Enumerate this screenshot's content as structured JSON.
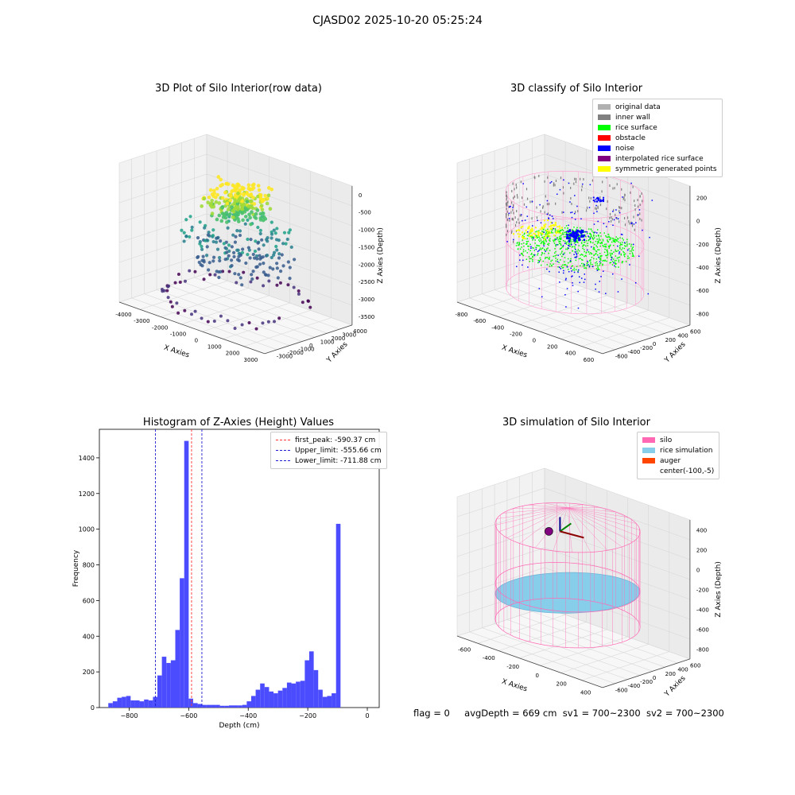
{
  "suptitle": "CJASD02 2025-10-20 05:25:24",
  "footer": {
    "flag": "flag = 0",
    "avg": "avgDepth = 669 cm",
    "sv1": "sv1 = 700~2300",
    "sv2": "sv2 = 700~2300"
  },
  "colors": {
    "histogram_bar": "#4c4cff",
    "first_peak_line": "#ff3333",
    "limit_lines": "#1f1fd0",
    "silo_wire": "#ff69b4",
    "rice_simulation": "#87ceeb",
    "auger": "#ff4500"
  },
  "chart_data": [
    {
      "type": "scatter",
      "subtype": "3d",
      "title": "3D Plot of Silo Interior(row data)",
      "xlabel": "X Axies",
      "ylabel": "Y Axies",
      "zlabel": "Z Axies (Depth)",
      "xticks": [
        "-4000",
        "-3000",
        "-2000",
        "-1000",
        "0",
        "1000",
        "2000",
        "3000"
      ],
      "yticks": [
        "-3000",
        "-2000",
        "-1000",
        "0",
        "1000",
        "2000",
        "3000",
        "4000"
      ],
      "zticks": [
        "0",
        "-500",
        "-1000",
        "-1500",
        "-2000",
        "-2500",
        "-3000",
        "-3500"
      ],
      "colormap": "viridis",
      "grid": true
    },
    {
      "type": "scatter",
      "subtype": "3d",
      "title": "3D classify of Silo Interior",
      "xlabel": "X Axies",
      "ylabel": "Y Axies",
      "zlabel": "Z Axies (Depth)",
      "xticks": [
        "-800",
        "-600",
        "-400",
        "-200",
        "0",
        "200",
        "400",
        "600"
      ],
      "yticks": [
        "-600",
        "-400",
        "-200",
        "0",
        "200",
        "400",
        "600"
      ],
      "zticks": [
        "200",
        "0",
        "-200",
        "-400",
        "-600",
        "-800"
      ],
      "legend": [
        {
          "label": "original data",
          "color": "#b0b0b0"
        },
        {
          "label": "inner wall",
          "color": "#808080"
        },
        {
          "label": "rice surface",
          "color": "#00ff00"
        },
        {
          "label": "obstacle",
          "color": "#ff0000"
        },
        {
          "label": "noise",
          "color": "#0000ff"
        },
        {
          "label": "interpolated rice surface",
          "color": "#800080"
        },
        {
          "label": "symmetric generated points",
          "color": "#ffff00"
        }
      ],
      "legend_position": "top-right",
      "grid": true
    },
    {
      "type": "bar",
      "subtype": "histogram",
      "title": "Histogram of Z-Axies (Height) Values",
      "xlabel": "Depth (cm)",
      "ylabel": "Frequency",
      "xlim": [
        -900,
        40
      ],
      "ylim": [
        0,
        1560
      ],
      "xticks": [
        -800,
        -600,
        -400,
        -200,
        0
      ],
      "yticks": [
        0,
        200,
        400,
        600,
        800,
        1000,
        1200,
        1400
      ],
      "bin_width": 15,
      "bins": [
        [
          -870,
          25
        ],
        [
          -855,
          35
        ],
        [
          -840,
          55
        ],
        [
          -825,
          60
        ],
        [
          -810,
          65
        ],
        [
          -795,
          40
        ],
        [
          -780,
          40
        ],
        [
          -765,
          35
        ],
        [
          -750,
          45
        ],
        [
          -735,
          40
        ],
        [
          -720,
          60
        ],
        [
          -705,
          180
        ],
        [
          -690,
          285
        ],
        [
          -675,
          250
        ],
        [
          -660,
          265
        ],
        [
          -645,
          435
        ],
        [
          -630,
          725
        ],
        [
          -615,
          1495
        ],
        [
          -600,
          50
        ],
        [
          -585,
          25
        ],
        [
          -570,
          20
        ],
        [
          -555,
          15
        ],
        [
          -540,
          15
        ],
        [
          -525,
          15
        ],
        [
          -510,
          15
        ],
        [
          -495,
          10
        ],
        [
          -480,
          10
        ],
        [
          -465,
          12
        ],
        [
          -450,
          12
        ],
        [
          -435,
          12
        ],
        [
          -420,
          15
        ],
        [
          -405,
          35
        ],
        [
          -390,
          65
        ],
        [
          -375,
          100
        ],
        [
          -360,
          135
        ],
        [
          -345,
          115
        ],
        [
          -330,
          90
        ],
        [
          -315,
          80
        ],
        [
          -300,
          95
        ],
        [
          -285,
          110
        ],
        [
          -270,
          140
        ],
        [
          -255,
          135
        ],
        [
          -240,
          145
        ],
        [
          -225,
          150
        ],
        [
          -210,
          265
        ],
        [
          -195,
          315
        ],
        [
          -180,
          210
        ],
        [
          -165,
          100
        ],
        [
          -150,
          60
        ],
        [
          -135,
          65
        ],
        [
          -120,
          80
        ],
        [
          -105,
          1030
        ]
      ],
      "bin_offset_note": "",
      "vlines": [
        {
          "label": "first_peak: -590.37 cm",
          "x": -590.37,
          "color": "#ff3333"
        },
        {
          "label": "Upper_limit: -555.66 cm",
          "x": -555.66,
          "color": "#1f1fd0"
        },
        {
          "label": "Lower_limit: -711.88 cm",
          "x": -711.88,
          "color": "#1f1fd0"
        }
      ],
      "legend_position": "top-right"
    },
    {
      "type": "area",
      "subtype": "3d-surface",
      "title": "3D simulation of Silo Interior",
      "xlabel": "X Axies",
      "ylabel": "Y Axies",
      "zlabel": "Z Axies (Depth)",
      "xticks": [
        "-600",
        "-400",
        "-200",
        "0",
        "200",
        "400"
      ],
      "yticks": [
        "-600",
        "-400",
        "-200",
        "0",
        "200",
        "400",
        "600"
      ],
      "zticks": [
        "400",
        "200",
        "0",
        "-200",
        "-400",
        "-600",
        "-800"
      ],
      "legend": [
        {
          "label": "silo",
          "color": "#ff69b4"
        },
        {
          "label": "rice simulation",
          "color": "#87ceeb"
        },
        {
          "label": "auger",
          "color": "#ff4500"
        },
        {
          "label": "center(-100,-5)",
          "color": ""
        }
      ],
      "legend_position": "top-right",
      "grid": true
    }
  ]
}
